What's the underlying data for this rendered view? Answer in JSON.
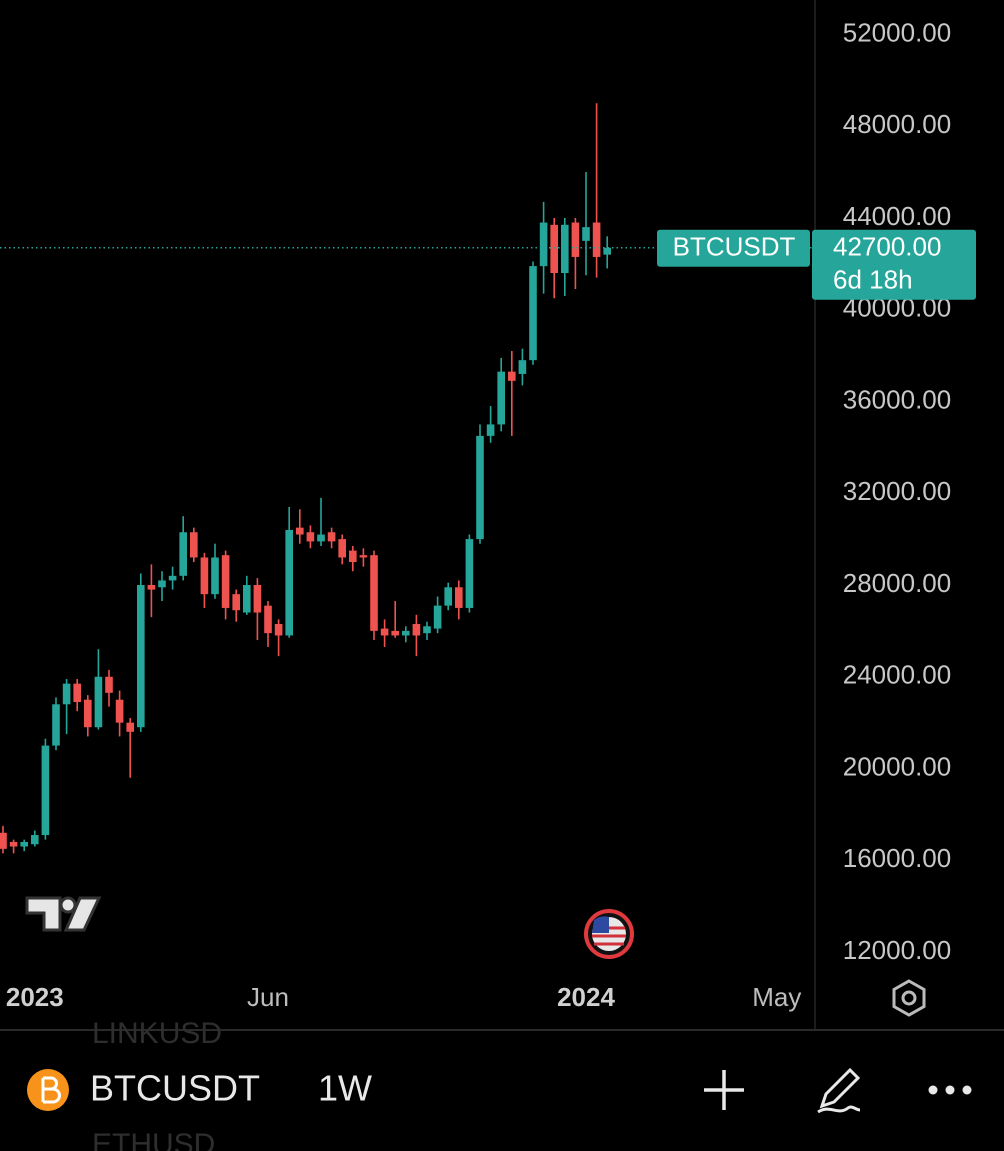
{
  "chart_data": {
    "type": "candlestick",
    "symbol": "BTCUSDT",
    "interval": "1W",
    "countdown": "6d 18h",
    "watchlist": [
      "LINKUSD",
      "ETHUSD"
    ],
    "last_price": {
      "value": 42700,
      "label": "42700.00"
    },
    "up_color": "#26a69a",
    "down_color": "#ef5350",
    "categories": [
      null,
      null,
      null,
      "2023",
      null,
      null,
      null,
      null,
      null,
      null,
      null,
      null,
      null,
      null,
      null,
      null,
      null,
      null,
      null,
      null,
      null,
      null,
      null,
      null,
      null,
      "Jun",
      null,
      null,
      null,
      null,
      null,
      null,
      null,
      null,
      null,
      null,
      null,
      null,
      null,
      null,
      null,
      null,
      null,
      null,
      null,
      null,
      null,
      null,
      null,
      null,
      null,
      null,
      null,
      null,
      null,
      "2024",
      null,
      null,
      null,
      null,
      null,
      null,
      null,
      null,
      null,
      null,
      null,
      null,
      null,
      null,
      null,
      null,
      null,
      "May",
      null,
      null
    ],
    "open": [
      17200,
      16800,
      16600,
      16700,
      17100,
      21000,
      22800,
      23700,
      23000,
      21800,
      24000,
      23000,
      22000,
      21800,
      28000,
      27900,
      28200,
      28400,
      30300,
      29200,
      27600,
      29300,
      27600,
      26800,
      28000,
      27100,
      26300,
      25800,
      30500,
      30300,
      29900,
      30300,
      30000,
      29500,
      29300,
      29300,
      26100,
      26000,
      25800,
      26300,
      25900,
      26100,
      27100,
      27900,
      27000,
      30000,
      34500,
      35000,
      37300,
      37200,
      37800,
      41900,
      43700,
      41600,
      43800,
      43000,
      43800,
      42400,
      null,
      null,
      null,
      null,
      null,
      null,
      null,
      null,
      null,
      null,
      null,
      null,
      null,
      null,
      null,
      null,
      null,
      null
    ],
    "high": [
      17500,
      16900,
      16900,
      17300,
      21300,
      23100,
      23900,
      23900,
      23200,
      25200,
      24300,
      23400,
      22200,
      28500,
      28900,
      28600,
      28800,
      31000,
      30500,
      29400,
      29800,
      29500,
      27800,
      28400,
      28300,
      27300,
      26500,
      31400,
      31300,
      30600,
      31800,
      30500,
      30200,
      29700,
      29600,
      29500,
      26500,
      27300,
      26200,
      26700,
      26400,
      27500,
      28100,
      28200,
      30200,
      35000,
      35800,
      37900,
      38200,
      38300,
      42100,
      44700,
      44000,
      44000,
      44000,
      46000,
      49000,
      43200,
      null,
      null,
      null,
      null,
      null,
      null,
      null,
      null,
      null,
      null,
      null,
      null,
      null,
      null,
      null,
      null,
      null,
      null
    ],
    "low": [
      16300,
      16300,
      16400,
      16600,
      16900,
      20800,
      21500,
      22500,
      21400,
      21700,
      22700,
      21400,
      19600,
      21600,
      26600,
      27300,
      27800,
      28200,
      29000,
      27000,
      27400,
      26500,
      26400,
      26700,
      25600,
      25300,
      24900,
      25700,
      29800,
      29600,
      29700,
      29600,
      28900,
      28600,
      28800,
      25600,
      25300,
      25700,
      25500,
      24900,
      25600,
      25900,
      26900,
      26500,
      26800,
      29800,
      34200,
      34700,
      34500,
      36700,
      37600,
      40700,
      40500,
      40600,
      40900,
      41500,
      41400,
      41800,
      null,
      null,
      null,
      null,
      null,
      null,
      null,
      null,
      null,
      null,
      null,
      null,
      null,
      null,
      null,
      null,
      null,
      null
    ],
    "close": [
      16500,
      16600,
      16800,
      17100,
      21000,
      22800,
      23700,
      22900,
      21800,
      24000,
      23300,
      22000,
      21600,
      28000,
      27800,
      28200,
      28400,
      30300,
      29200,
      27600,
      29200,
      27000,
      26900,
      28000,
      26800,
      25900,
      25800,
      30400,
      30200,
      29900,
      30200,
      29900,
      29200,
      29000,
      29200,
      26000,
      25800,
      25800,
      26000,
      25800,
      26200,
      27100,
      27900,
      27000,
      30000,
      34500,
      35000,
      37300,
      36900,
      37800,
      41900,
      43800,
      41600,
      43700,
      42300,
      43600,
      42300,
      42700,
      null,
      null,
      null,
      null,
      null,
      null,
      null,
      null,
      null,
      null,
      null,
      null,
      null,
      null,
      null,
      null,
      null,
      null
    ],
    "ylim": [
      11000,
      53500
    ],
    "yticks": [
      {
        "value": 52000,
        "label": "52000.00"
      },
      {
        "value": 48000,
        "label": "48000.00"
      },
      {
        "value": 44000,
        "label": "44000.00"
      },
      {
        "value": 40000,
        "label": "40000.00"
      },
      {
        "value": 36000,
        "label": "36000.00"
      },
      {
        "value": 32000,
        "label": "32000.00"
      },
      {
        "value": 28000,
        "label": "28000.00"
      },
      {
        "value": 24000,
        "label": "24000.00"
      },
      {
        "value": 20000,
        "label": "20000.00"
      },
      {
        "value": 16000,
        "label": "16000.00"
      },
      {
        "value": 12000,
        "label": "12000.00"
      }
    ]
  }
}
